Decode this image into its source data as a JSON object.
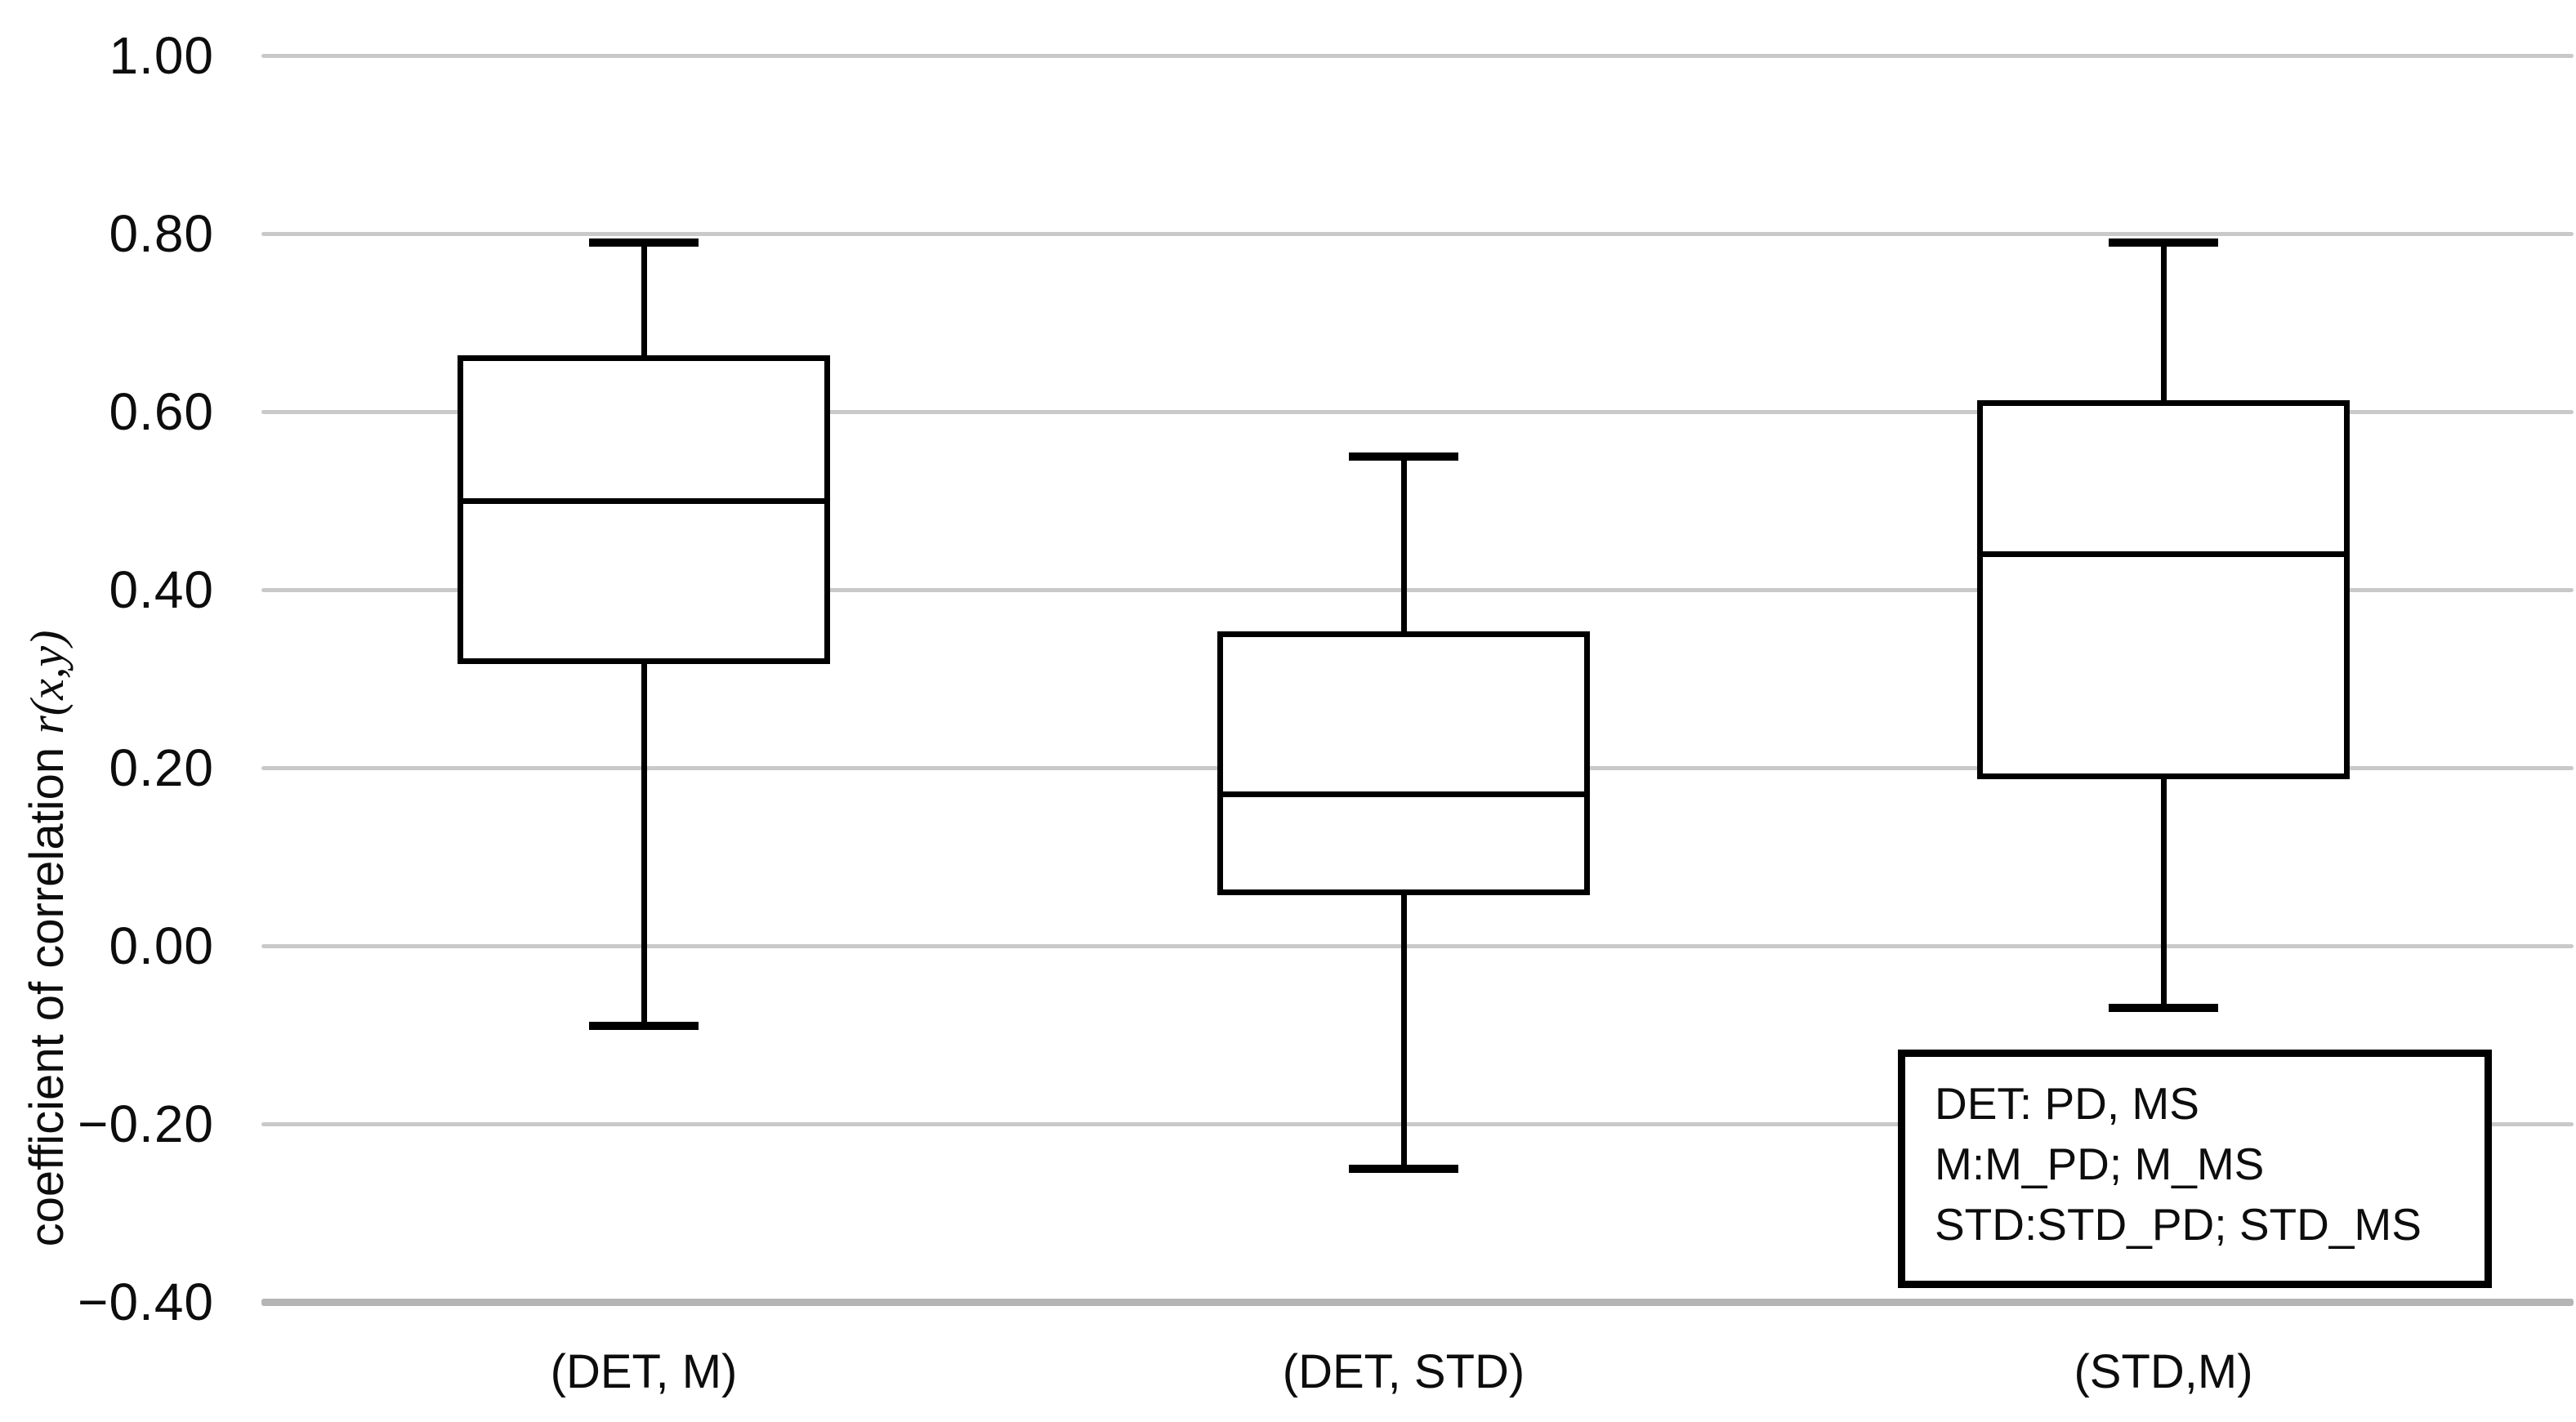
{
  "chart_data": {
    "type": "box",
    "title": "",
    "ylabel_prefix": "coefficient of correlation ",
    "ylabel_math": "r(x,y)",
    "categories": [
      "(DET, M)",
      "(DET, STD)",
      "(STD,M)"
    ],
    "series": [
      {
        "name": "(DET, M)",
        "whisker_low": -0.09,
        "q1": 0.32,
        "median": 0.5,
        "q3": 0.66,
        "whisker_high": 0.79
      },
      {
        "name": "(DET, STD)",
        "whisker_low": -0.25,
        "q1": 0.06,
        "median": 0.17,
        "q3": 0.35,
        "whisker_high": 0.55
      },
      {
        "name": "(STD,M)",
        "whisker_low": -0.07,
        "q1": 0.19,
        "median": 0.44,
        "q3": 0.61,
        "whisker_high": 0.79
      }
    ],
    "y_axis": {
      "min": -0.4,
      "max": 1.0,
      "tick_step": 0.2,
      "grid": true,
      "ticks": [
        {
          "label": "1.00",
          "value": 1.0
        },
        {
          "label": "0.80",
          "value": 0.8
        },
        {
          "label": "0.60",
          "value": 0.6
        },
        {
          "label": "0.40",
          "value": 0.4
        },
        {
          "label": "0.20",
          "value": 0.2
        },
        {
          "label": "0.00",
          "value": 0.0
        },
        {
          "label": "−0.20",
          "value": -0.2
        },
        {
          "label": "−0.40",
          "value": -0.4
        }
      ]
    },
    "legend": {
      "position": "bottom-right",
      "lines": [
        "DET: PD, MS",
        "M:M_PD; M_MS",
        "STD:STD_PD; STD_MS"
      ]
    },
    "colors": {
      "box_stroke": "#000000",
      "box_fill": "#ffffff",
      "gridline": "#c9c9c9",
      "axis_line": "#b5b5b5",
      "background": "#ffffff",
      "text": "#0d0d0d"
    }
  }
}
